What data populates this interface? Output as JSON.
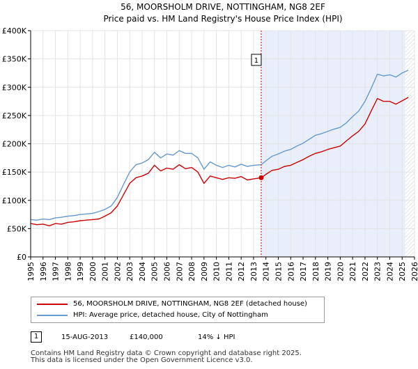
{
  "colors": {
    "property_line": "#cc0000",
    "hpi_line": "#6699cc",
    "shade": "#e9effa",
    "grid": "#e3e3e3",
    "hatch": "#cccccc"
  },
  "chart_data": {
    "type": "line",
    "title": "56, MOORSHOLM DRIVE, NOTTINGHAM, NG8 2EF",
    "subtitle": "Price paid vs. HM Land Registry's House Price Index (HPI)",
    "xlim": [
      1995,
      2026
    ],
    "ylim": [
      0,
      400000
    ],
    "x_ticks": [
      1995,
      1996,
      1997,
      1998,
      1999,
      2000,
      2001,
      2002,
      2003,
      2004,
      2005,
      2006,
      2007,
      2008,
      2009,
      2010,
      2011,
      2012,
      2013,
      2014,
      2015,
      2016,
      2017,
      2018,
      2019,
      2020,
      2021,
      2022,
      2023,
      2024,
      2025,
      2026
    ],
    "y_ticks": [
      {
        "value": 0,
        "label": "£0"
      },
      {
        "value": 50000,
        "label": "£50K"
      },
      {
        "value": 100000,
        "label": "£100K"
      },
      {
        "value": 150000,
        "label": "£150K"
      },
      {
        "value": 200000,
        "label": "£200K"
      },
      {
        "value": 250000,
        "label": "£250K"
      },
      {
        "value": 300000,
        "label": "£300K"
      },
      {
        "value": 350000,
        "label": "£350K"
      },
      {
        "value": 400000,
        "label": "£400K"
      }
    ],
    "shaded_from": 2013.62,
    "hatched_from": 2025.25,
    "series": [
      {
        "name": "56, MOORSHOLM DRIVE, NOTTINGHAM, NG8 2EF (detached house)",
        "color": "#cc0000",
        "x": [
          1995,
          1995.5,
          1996,
          1996.5,
          1997,
          1997.5,
          1998,
          1998.5,
          1999,
          1999.5,
          2000,
          2000.5,
          2001,
          2001.5,
          2002,
          2002.5,
          2003,
          2003.5,
          2004,
          2004.5,
          2005,
          2005.5,
          2006,
          2006.5,
          2007,
          2007.5,
          2008,
          2008.5,
          2009,
          2009.5,
          2010,
          2010.5,
          2011,
          2011.5,
          2012,
          2012.5,
          2013,
          2013.62,
          2014,
          2014.5,
          2015,
          2015.5,
          2016,
          2016.5,
          2017,
          2017.5,
          2018,
          2018.5,
          2019,
          2019.5,
          2020,
          2020.5,
          2021,
          2021.5,
          2022,
          2022.5,
          2023,
          2023.5,
          2024,
          2024.5,
          2025,
          2025.5
        ],
        "y": [
          59000,
          57000,
          58000,
          55000,
          59000,
          58000,
          61000,
          62000,
          64000,
          65000,
          66000,
          67000,
          72000,
          78000,
          90000,
          110000,
          130000,
          140000,
          143000,
          148000,
          162000,
          152000,
          157000,
          155000,
          163000,
          156000,
          158000,
          150000,
          130000,
          143000,
          140000,
          137000,
          140000,
          139000,
          142000,
          136000,
          138000,
          140000,
          146000,
          153000,
          155000,
          160000,
          162000,
          167000,
          172000,
          178000,
          183000,
          186000,
          190000,
          193000,
          196000,
          205000,
          214000,
          222000,
          235000,
          258000,
          280000,
          275000,
          275000,
          270000,
          276000,
          282000
        ]
      },
      {
        "name": "HPI: Average price, detached house, City of Nottingham",
        "color": "#6699cc",
        "x": [
          1995,
          1995.5,
          1996,
          1996.5,
          1997,
          1997.5,
          1998,
          1998.5,
          1999,
          1999.5,
          2000,
          2000.5,
          2001,
          2001.5,
          2002,
          2002.5,
          2003,
          2003.5,
          2004,
          2004.5,
          2005,
          2005.5,
          2006,
          2006.5,
          2007,
          2007.5,
          2008,
          2008.5,
          2009,
          2009.5,
          2010,
          2010.5,
          2011,
          2011.5,
          2012,
          2012.5,
          2013,
          2013.62,
          2014,
          2014.5,
          2015,
          2015.5,
          2016,
          2016.5,
          2017,
          2017.5,
          2018,
          2018.5,
          2019,
          2019.5,
          2020,
          2020.5,
          2021,
          2021.5,
          2022,
          2022.5,
          2023,
          2023.5,
          2024,
          2024.5,
          2025,
          2025.5
        ],
        "y": [
          66000,
          65000,
          67000,
          66000,
          69000,
          70000,
          72000,
          73000,
          75000,
          76000,
          77000,
          80000,
          84000,
          90000,
          105000,
          128000,
          150000,
          163000,
          166000,
          172000,
          185000,
          175000,
          182000,
          180000,
          188000,
          183000,
          183000,
          175000,
          155000,
          168000,
          162000,
          158000,
          162000,
          159000,
          164000,
          160000,
          162000,
          163000,
          170000,
          178000,
          182000,
          187000,
          190000,
          196000,
          201000,
          208000,
          215000,
          218000,
          222000,
          226000,
          229000,
          237000,
          248000,
          258000,
          275000,
          298000,
          323000,
          320000,
          322000,
          318000,
          325000,
          330000
        ]
      }
    ],
    "annotations": [
      {
        "label": "1",
        "x": 2013.62,
        "y": 140000
      }
    ]
  },
  "legend": {
    "property": "56, MOORSHOLM DRIVE, NOTTINGHAM, NG8 2EF (detached house)",
    "hpi": "HPI: Average price, detached house, City of Nottingham"
  },
  "sales": [
    {
      "num": "1",
      "date": "15-AUG-2013",
      "price": "£140,000",
      "diff": "14% ↓ HPI"
    }
  ],
  "footer": {
    "line1": "Contains HM Land Registry data © Crown copyright and database right 2025.",
    "line2": "This data is licensed under the Open Government Licence v3.0."
  }
}
